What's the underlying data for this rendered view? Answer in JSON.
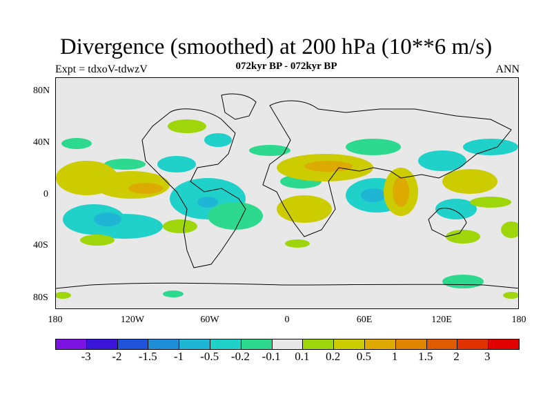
{
  "title": "Divergence (smoothed) at 200 hPa (10**6 m/s)",
  "expt": "Expt = tdxoV-tdwzV",
  "period": "072kyr BP - 072kyr BP",
  "season": "ANN",
  "lat_labels": [
    "80N",
    "40N",
    "0",
    "40S",
    "80S"
  ],
  "lon_labels": [
    "180",
    "120W",
    "60W",
    "0",
    "60E",
    "120E",
    "180"
  ],
  "colorbar": {
    "colors": [
      "#7d13e3",
      "#3a14d9",
      "#1f53d9",
      "#1e8fd6",
      "#1fb6d6",
      "#1fd1c9",
      "#2dd98e",
      "#e8e8e8",
      "#9ed60b",
      "#cccc00",
      "#dcaa00",
      "#e08500",
      "#e05a00",
      "#e03200",
      "#e00000"
    ],
    "labels": [
      "-3",
      "-2",
      "-1.5",
      "-1",
      "-0.5",
      "-0.2",
      "-0.1",
      "0.1",
      "0.2",
      "0.5",
      "1",
      "1.5",
      "2",
      "3"
    ]
  }
}
